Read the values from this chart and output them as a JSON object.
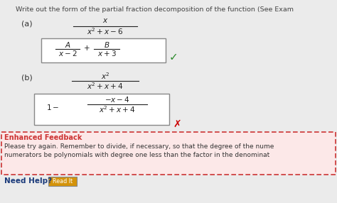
{
  "bg_color": "#ebebeb",
  "title_text": "Write out the form of the partial fraction decomposition of the function (See Exam",
  "title_color": "#444444",
  "check_color": "#2e8b2e",
  "cross_color": "#cc0000",
  "box_edgecolor": "#888888",
  "feedback_bg": "#fce8e8",
  "feedback_border": "#cc3333",
  "feedback_title": "Enhanced Feedback",
  "feedback_title_color": "#cc3333",
  "feedback_line1": "Please try again. Remember to divide, if necessary, so that the degree of the nume",
  "feedback_line2": "numerators be polynomials with degree one less than the factor in the denominat",
  "feedback_text_color": "#333333",
  "needhelp_color": "#1a3a7a",
  "readit_bg": "#d4930a",
  "readit_border": "#888888",
  "readit_color": "#ffffff",
  "math_color": "#222222",
  "label_color": "#333333"
}
